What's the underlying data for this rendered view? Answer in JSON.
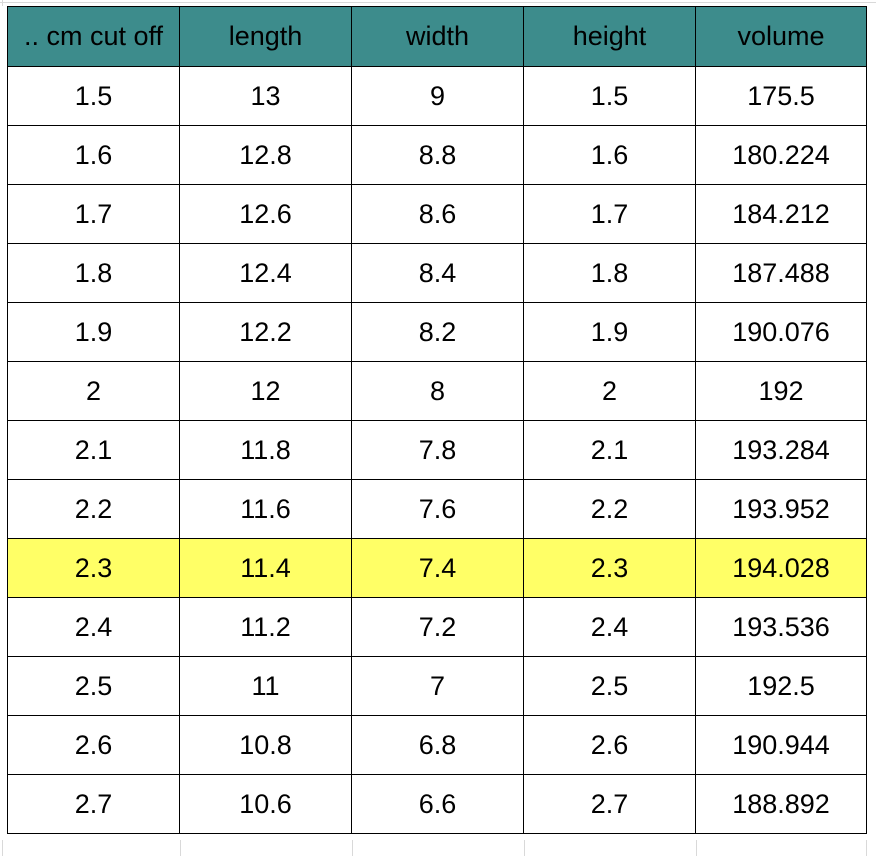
{
  "table": {
    "headers": [
      ".. cm cut off",
      "length",
      "width",
      "height",
      "volume"
    ],
    "rows": [
      [
        "1.5",
        "13",
        "9",
        "1.5",
        "175.5"
      ],
      [
        "1.6",
        "12.8",
        "8.8",
        "1.6",
        "180.224"
      ],
      [
        "1.7",
        "12.6",
        "8.6",
        "1.7",
        "184.212"
      ],
      [
        "1.8",
        "12.4",
        "8.4",
        "1.8",
        "187.488"
      ],
      [
        "1.9",
        "12.2",
        "8.2",
        "1.9",
        "190.076"
      ],
      [
        "2",
        "12",
        "8",
        "2",
        "192"
      ],
      [
        "2.1",
        "11.8",
        "7.8",
        "2.1",
        "193.284"
      ],
      [
        "2.2",
        "11.6",
        "7.6",
        "2.2",
        "193.952"
      ],
      [
        "2.3",
        "11.4",
        "7.4",
        "2.3",
        "194.028"
      ],
      [
        "2.4",
        "11.2",
        "7.2",
        "2.4",
        "193.536"
      ],
      [
        "2.5",
        "11",
        "7",
        "2.5",
        "192.5"
      ],
      [
        "2.6",
        "10.8",
        "6.8",
        "2.6",
        "190.944"
      ],
      [
        "2.7",
        "10.6",
        "6.6",
        "2.7",
        "188.892"
      ]
    ],
    "highlighted_row_index": 8
  },
  "colors": {
    "header_fill": "#3d8c8c",
    "highlight_fill": "#ffff66",
    "border": "#000000",
    "gridline": "#d9d9d9"
  }
}
